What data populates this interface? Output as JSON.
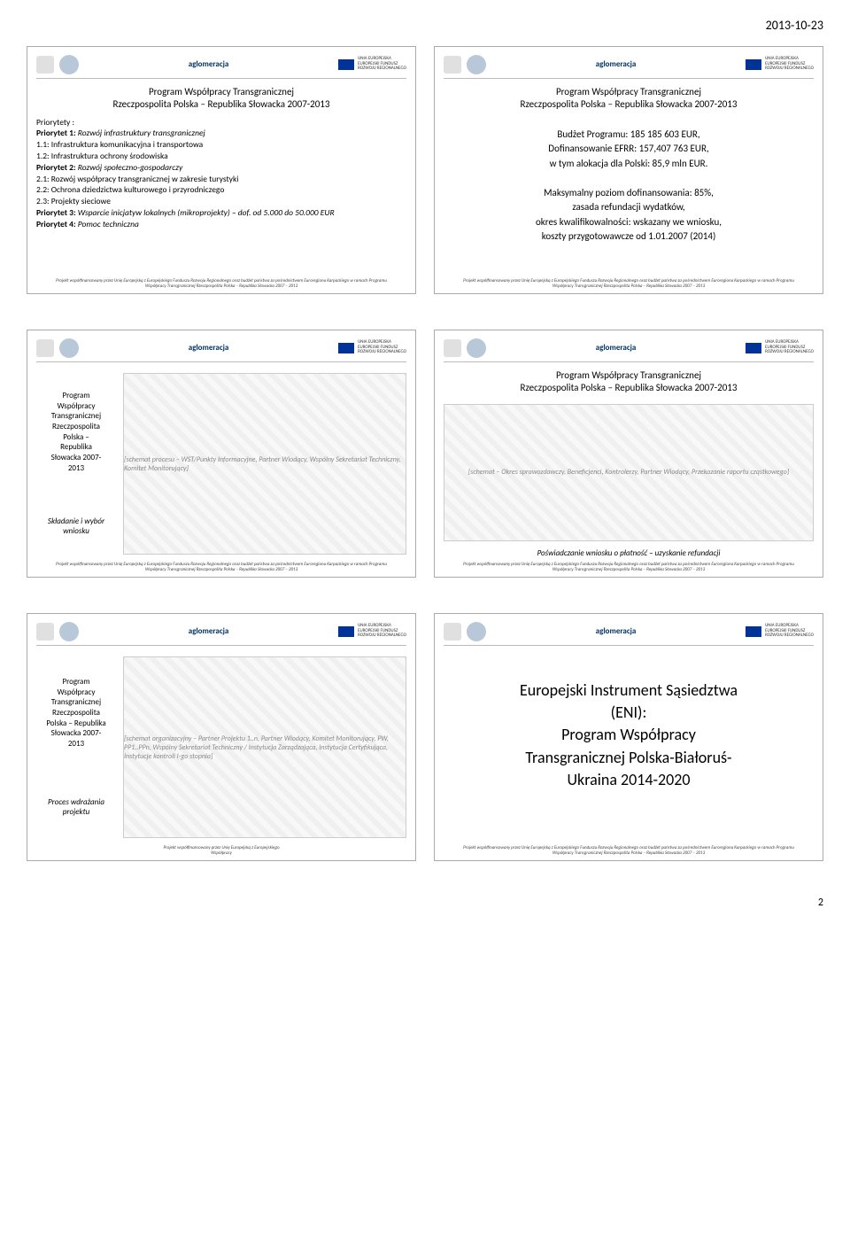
{
  "page_date": "2013-10-23",
  "program_title_line1": "Program Współpracy Transgranicznej",
  "program_title_line2": "Rzeczpospolita Polska – Republika Słowacka 2007-2013",
  "eu_label_line1": "UNIA EUROPEJSKA",
  "eu_label_line2": "EUROPEJSKI FUNDUSZ",
  "eu_label_line3": "ROZWOJU REGIONALNEGO",
  "aglomeracja": "aglomeracja",
  "footer_line1": "Projekt współfinansowany przez Unię Europejską z Europejskiego Funduszu Rozwoju Regionalnego oraz budżet państwa za pośrednictwem Euroregionu Karpackiego w ramach Programu",
  "footer_line2": "Współpracy Transgranicznej Rzeczpospolita Polska – Republika Słowacka 2007 – 2013",
  "footer_short": "Projekt współfinansowany przez Unię Europejską z Europejskiego",
  "footer_short2": "Współpracy",
  "slide1": {
    "priorytety": "Priorytety :",
    "p1": "Priorytet 1: Rozwój infrastruktury transgranicznej",
    "p1_1": "1.1: Infrastruktura komunikacyjna i transportowa",
    "p1_2": "1.2: Infrastruktura ochrony środowiska",
    "p2": "Priorytet 2: Rozwój społeczno-gospodarczy",
    "p2_1": "2.1: Rozwój współpracy transgranicznej w zakresie turystyki",
    "p2_2": "2.2: Ochrona dziedzictwa kulturowego i przyrodniczego",
    "p2_3": "2.3: Projekty sieciowe",
    "p3": "Priorytet 3: Wsparcie inicjatyw lokalnych (mikroprojekty) – dof. od 5.000 do 50.000 EUR",
    "p4": "Priorytet 4: Pomoc techniczna"
  },
  "slide2": {
    "line1": "Budżet Programu: 185 185 603 EUR,",
    "line2": "Dofinansowanie EFRR: 157,407 763 EUR,",
    "line3": "w tym alokacja dla Polski: 85,9 mln EUR.",
    "line4": "Maksymalny poziom dofinansowania: 85%,",
    "line5": "zasada refundacji wydatków,",
    "line6": "okres kwalifikowalności: wskazany we wniosku,",
    "line7": "koszty przygotowawcze od 1.01.2007 (2014)"
  },
  "slide3": {
    "title_line1": "Program",
    "title_line2": "Współpracy",
    "title_line3": "Transgranicznej",
    "title_line4": "Rzeczpospolita",
    "title_line5": "Polska –",
    "title_line6": "Republika",
    "title_line7": "Słowacka 2007-",
    "title_line8": "2013",
    "subtitle": "Składanie i wybór wniosku",
    "diagram": "[schemat procesu – WST/Punkty Informacyjne, Partner Wiodący, Wspólny Sekretariat Techniczny, Komitet Monitorujący]"
  },
  "slide4": {
    "note": "Poświadczanie wniosku o płatność – uzyskanie refundacji",
    "diagram": "[schemat – Okres sprawozdawczy, Beneficjenci, Kontrolerzy, Partner Wiodący, Przekazanie raportu cząstkowego]"
  },
  "slide5": {
    "title_line1": "Program",
    "title_line2": "Współpracy",
    "title_line3": "Transgranicznej",
    "title_line4": "Rzeczpospolita",
    "title_line5": "Polska – Republika",
    "title_line6": "Słowacka 2007-",
    "title_line7": "2013",
    "subtitle": "Proces wdrażania projektu",
    "diagram": "[schemat organizacyjny – Partner Projektu 1..n, Partner Wiodący, Komitet Monitorujący, PW, PP1..PPn, Wspólny Sekretariat Techniczny / Instytucja Zarządzająca, Instytucja Certyfikująca, Instytucje kontroli I-go stopnia]"
  },
  "slide6": {
    "line1": "Europejski Instrument Sąsiedztwa",
    "line2": "(ENI):",
    "line3": "Program Współpracy",
    "line4": "Transgranicznej Polska-Białoruś-",
    "line5": "Ukraina 2014-2020"
  },
  "page_number": "2"
}
